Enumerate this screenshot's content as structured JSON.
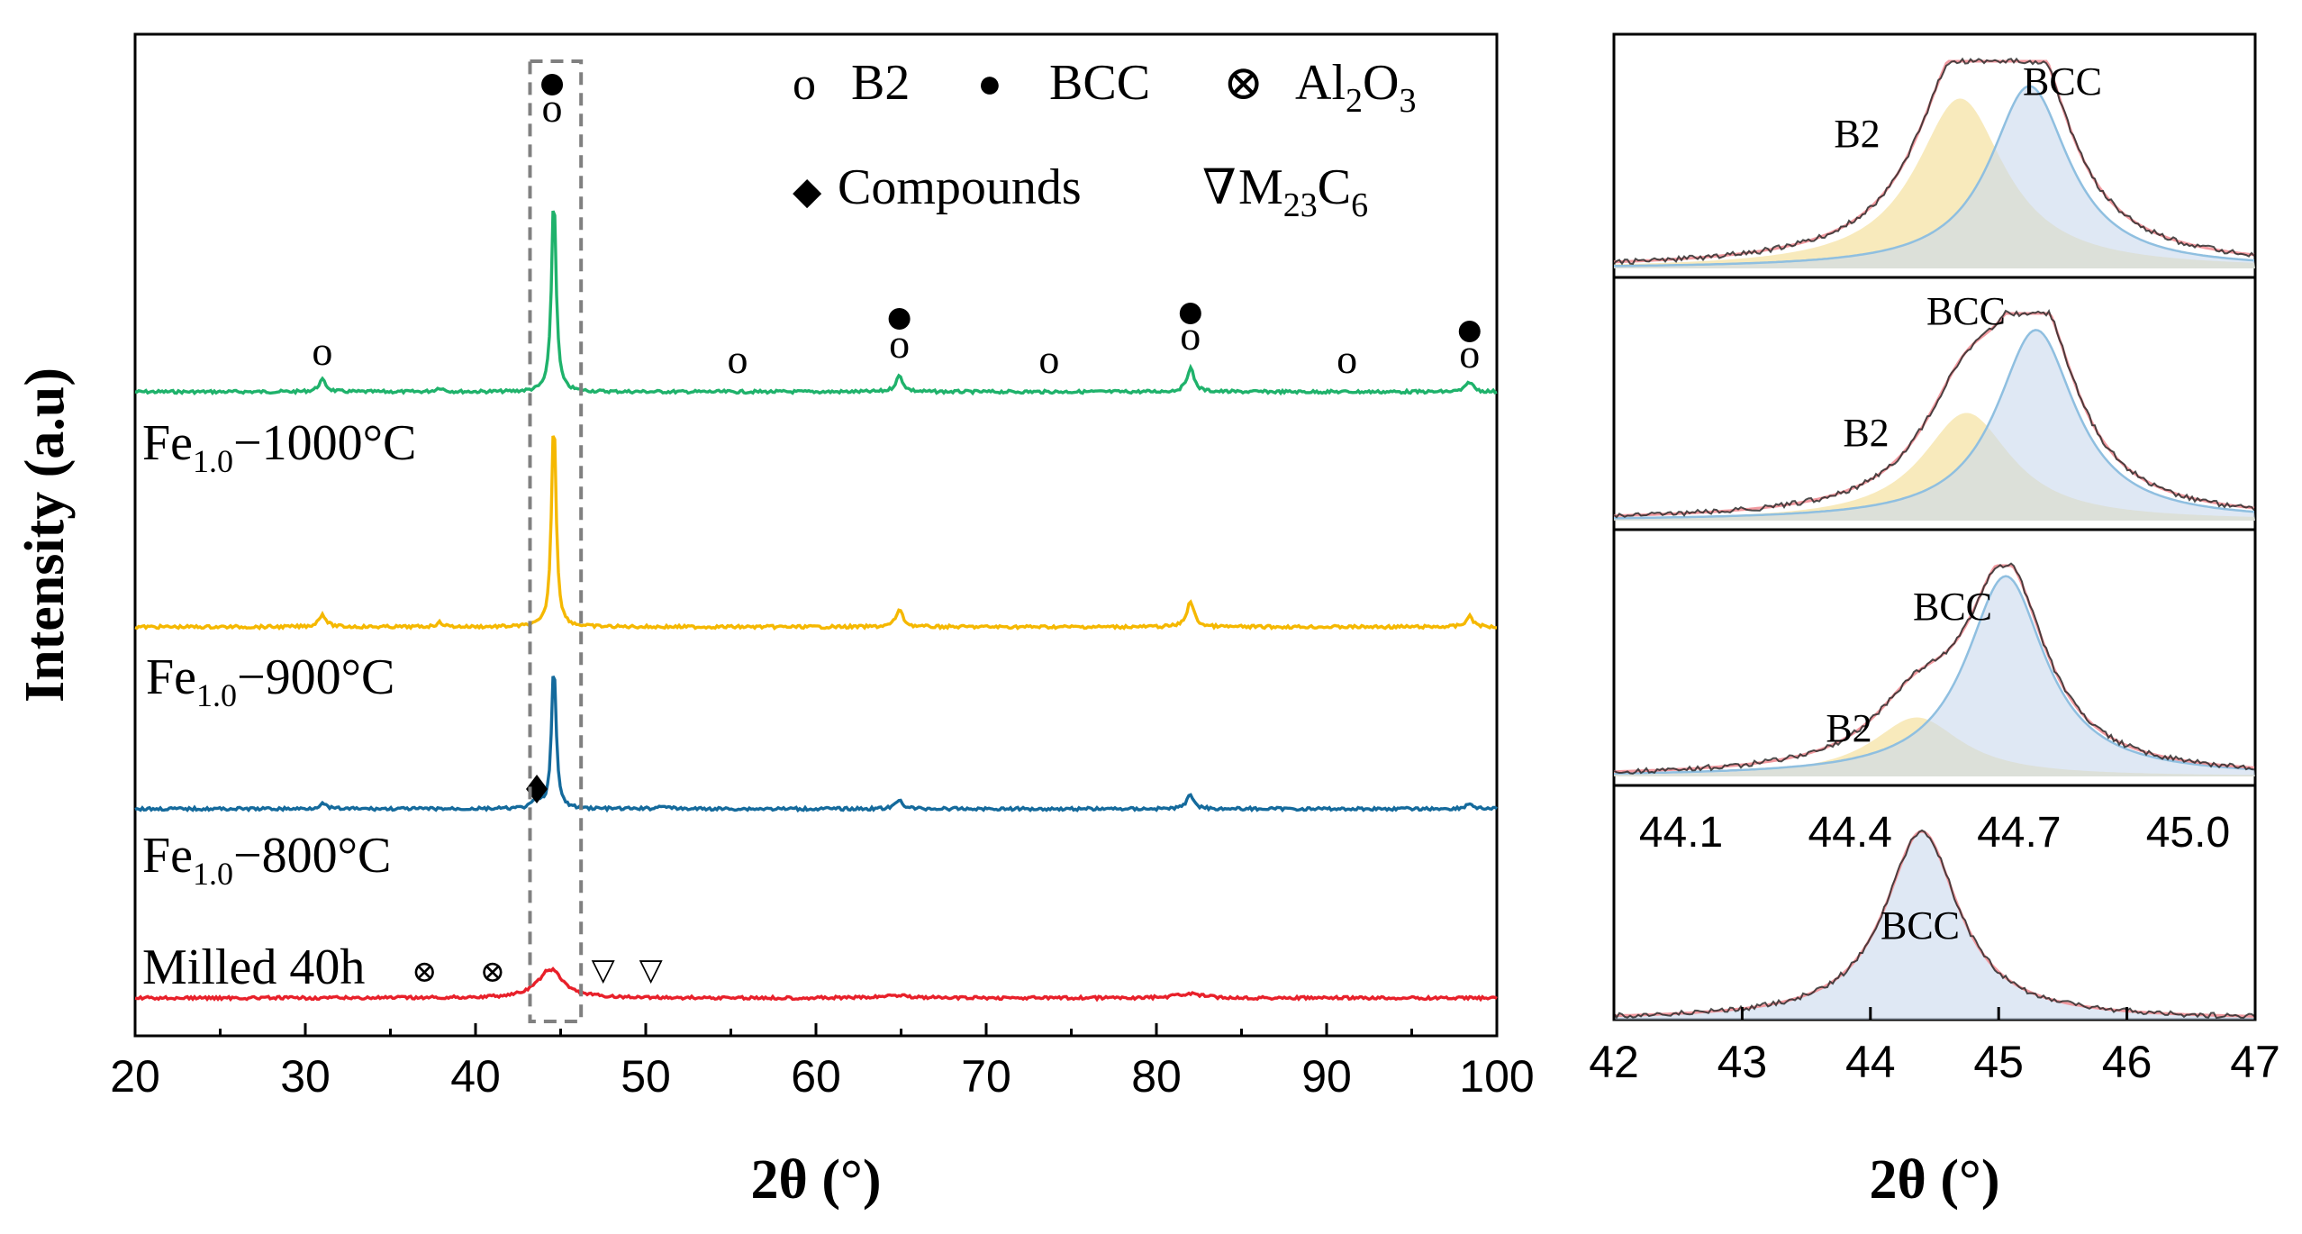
{
  "chart_data": [
    {
      "type": "line",
      "xlabel": "2θ (°)",
      "ylabel": "Intensity (a.u)",
      "xlim": [
        20,
        100
      ],
      "xticks": [
        "20",
        "30",
        "40",
        "50",
        "60",
        "70",
        "80",
        "90",
        "100"
      ],
      "legend": {
        "placement": "top-right",
        "entries": [
          {
            "symbol": "o",
            "name": "B2",
            "glyph": "o"
          },
          {
            "symbol": "filled-circle",
            "name": "BCC",
            "glyph": "●"
          },
          {
            "symbol": "circled-x",
            "name_base": "Al",
            "name_sub1": "2",
            "name_mid": "O",
            "name_sub2": "3",
            "glyph": "⊗"
          },
          {
            "symbol": "filled-diamond",
            "name": "Compounds",
            "glyph": "◆"
          },
          {
            "symbol": "open-triangle",
            "name_base": "M",
            "name_sub1": "23",
            "name_mid": "C",
            "name_sub2": "6",
            "glyph": "∇"
          }
        ]
      },
      "annotations": {
        "highlight_range": [
          43.2,
          46.2
        ],
        "b2_o_positions": [
          31.0,
          44.5,
          55.4,
          64.9,
          73.7,
          82.0,
          91.2,
          98.4
        ],
        "bcc_positions": [
          44.5,
          64.9,
          82.0,
          98.4
        ],
        "compound_position": 43.6,
        "al2o3_positions": [
          37.0,
          41.0
        ],
        "m23c6_positions": [
          47.5,
          50.3
        ]
      },
      "series": [
        {
          "name": "Fe1.0−1000°C",
          "label_base": "Fe",
          "label_sub": "1.0",
          "label_rest": "−1000°C",
          "color": "#1fb26b",
          "peaks": [
            [
              31.0,
              0.06
            ],
            [
              37.9,
              0.02
            ],
            [
              44.6,
              1.0
            ],
            [
              64.9,
              0.08
            ],
            [
              82.0,
              0.12
            ],
            [
              98.4,
              0.05
            ]
          ]
        },
        {
          "name": "Fe1.0−900°C",
          "label_base": "Fe",
          "label_sub": "1.0",
          "label_rest": "−900°C",
          "color": "#f5b800",
          "peaks": [
            [
              31.0,
              0.06
            ],
            [
              37.9,
              0.02
            ],
            [
              44.6,
              1.0
            ],
            [
              64.9,
              0.08
            ],
            [
              82.0,
              0.12
            ],
            [
              98.4,
              0.05
            ]
          ]
        },
        {
          "name": "Fe1.0−800°C",
          "label_base": "Fe",
          "label_sub": "1.0",
          "label_rest": "−800°C",
          "color": "#146a9c",
          "peaks": [
            [
              31.0,
              0.03
            ],
            [
              43.6,
              0.05
            ],
            [
              44.6,
              0.82
            ],
            [
              51.0,
              0.02
            ],
            [
              64.9,
              0.05
            ],
            [
              82.0,
              0.08
            ],
            [
              98.4,
              0.03
            ]
          ]
        },
        {
          "name": "Milled 40h",
          "label_base": "Milled 40h",
          "color": "#e8202a",
          "peaks": [
            [
              44.4,
              0.2
            ],
            [
              64.7,
              0.02
            ],
            [
              81.9,
              0.03
            ]
          ]
        }
      ]
    },
    {
      "type": "area",
      "xlabel": "2θ (°)",
      "xlim": [
        42,
        47
      ],
      "xticks": [
        "42",
        "43",
        "44",
        "45",
        "46",
        "47"
      ],
      "inner_xticks": [
        "44.1",
        "44.4",
        "44.7",
        "45.0"
      ],
      "inner_xticks_values": [
        44.1,
        44.4,
        44.7,
        45.0
      ],
      "panels": [
        {
          "bcc_label": "BCC",
          "b2_label": "B2",
          "b2": {
            "center": 44.35,
            "height": 0.82
          },
          "bcc": {
            "center": 44.62,
            "height": 0.88
          },
          "range": [
            43.0,
            45.5
          ]
        },
        {
          "bcc_label": "BCC",
          "b2_label": "B2",
          "b2": {
            "center": 44.32,
            "height": 0.52
          },
          "bcc": {
            "center": 44.58,
            "height": 0.92
          },
          "range": [
            43.0,
            45.4
          ]
        },
        {
          "bcc_label": "BCC",
          "b2_label": "B2",
          "b2": {
            "center": 44.35,
            "height": 0.28
          },
          "bcc": {
            "center": 44.6,
            "height": 0.95
          },
          "range": [
            43.5,
            45.3
          ]
        },
        {
          "bcc_label": "BCC",
          "bcc": {
            "center": 44.4,
            "height": 0.95
          },
          "range": [
            42,
            47
          ]
        }
      ]
    }
  ]
}
